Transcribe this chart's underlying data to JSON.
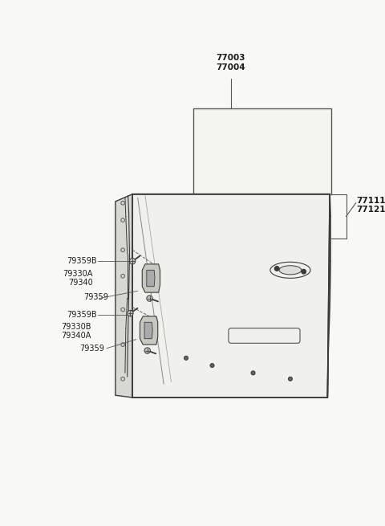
{
  "bg_color": "#f8f8f4",
  "line_color": "#3a3a3a",
  "label_color": "#1a1a1a",
  "door_face_color": "#f0f0ec",
  "door_side_color": "#d8d8d2",
  "door_top_color": "#e4e4de",
  "hinge_color": "#c8c8c0",
  "hinge_dark_color": "#aaaaaa",
  "labels": {
    "77003_77004": "77003\n77004",
    "77111_77121": "77111\n77121",
    "79359B_top": "79359B",
    "79330A_79340": "79330A\n79340",
    "79359_top": "79359",
    "79359B_bot": "79359B",
    "79330B_79340A": "79330B\n79340A",
    "79359_bot": "79359"
  },
  "font_size": 7.0
}
